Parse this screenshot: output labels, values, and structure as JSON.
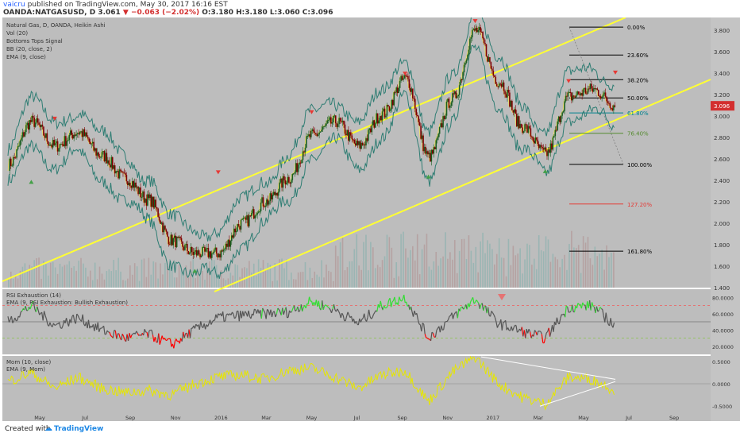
{
  "header": {
    "author": "vaicru",
    "published": "published on TradingView.com, May 30, 2017 16:16 EST",
    "symbol": "OANDA:NATGASUSD, D",
    "last": "3.061",
    "change": "−0.063 (−2.02%)",
    "ohlc": "O:3.180 H:3.180 L:3.060 C:3.096"
  },
  "footer": {
    "created_with": "Created with",
    "brand": "TradingView"
  },
  "colors": {
    "background": "#bdbdbd",
    "channel": "#ffff33",
    "bull_candle": "#1b5e20",
    "bear_candle": "#7f0000",
    "bollinger": "#2e7d73",
    "ema": "#ffeb3b",
    "fib_line": "#000000",
    "rsi_line": "#555555",
    "rsi_up": "#33dd33",
    "rsi_down": "#ff0000",
    "mom": "#e6e600"
  },
  "chart_data": [
    {
      "type": "line",
      "panel": "price",
      "studies": [
        "Natural Gas, D, OANDA, Heikin Ashi",
        "Vol (20)",
        "Bottoms Tops Signal",
        "BB (20, close, 2)",
        "EMA (9, close)"
      ],
      "x_ticks": [
        "May",
        "Jul",
        "Sep",
        "Nov",
        "2016",
        "Mar",
        "May",
        "Jul",
        "Sep",
        "Nov",
        "2017",
        "Mar",
        "May",
        "Jul",
        "Sep"
      ],
      "y_ticks": [
        "3.800",
        "3.600",
        "3.400",
        "3.200",
        "3.000",
        "2.800",
        "2.600",
        "2.400",
        "2.200",
        "2.000",
        "1.800",
        "1.600",
        "1.400"
      ],
      "ylim": [
        1.4,
        3.92
      ],
      "last_price_label": "3.096",
      "price_series_monthly": [
        2.55,
        2.95,
        2.72,
        2.85,
        2.63,
        2.42,
        2.22,
        1.84,
        1.72,
        1.72,
        2.0,
        2.2,
        2.42,
        2.82,
        2.95,
        2.72,
        3.02,
        3.35,
        2.62,
        3.16,
        3.8,
        3.32,
        2.9,
        2.65,
        3.18,
        3.25,
        3.1
      ],
      "fib_levels": [
        {
          "label": "0.00%",
          "price": 3.83
        },
        {
          "label": "23.60%",
          "price": 3.57
        },
        {
          "label": "38.20%",
          "price": 3.34
        },
        {
          "label": "50.00%",
          "price": 3.17
        },
        {
          "label": "61.80%",
          "price": 3.03
        },
        {
          "label": "76.40%",
          "price": 2.84
        },
        {
          "label": "100.00%",
          "price": 2.55
        },
        {
          "label": "127.20%",
          "price": 2.18
        },
        {
          "label": "161.80%",
          "price": 1.74
        }
      ]
    },
    {
      "type": "line",
      "panel": "rsi",
      "studies": [
        "RSI Exhaustion (14)",
        "EMA (9, RSI Exhaustion: Bullish Exhaustion)"
      ],
      "y_ticks": [
        "80.0000",
        "60.0000",
        "40.0000",
        "20.0000"
      ],
      "ylim": [
        10,
        90
      ],
      "overbought": 70,
      "oversold": 30,
      "rsi_series_monthly": [
        50,
        70,
        45,
        55,
        40,
        30,
        35,
        22,
        40,
        55,
        58,
        60,
        62,
        75,
        65,
        48,
        70,
        80,
        30,
        55,
        78,
        48,
        38,
        30,
        68,
        70,
        45
      ]
    },
    {
      "type": "line",
      "panel": "momentum",
      "studies": [
        "Mom (10, close)",
        "EMA (9, Mom)"
      ],
      "y_ticks": [
        "0.5000",
        "0.0000",
        "-0.5000"
      ],
      "ylim": [
        -0.62,
        0.62
      ],
      "mom_series_monthly": [
        0.05,
        0.25,
        -0.1,
        0.15,
        -0.1,
        -0.2,
        -0.15,
        -0.25,
        0.0,
        0.15,
        0.2,
        0.1,
        0.3,
        0.35,
        0.15,
        -0.1,
        0.2,
        0.3,
        -0.4,
        0.25,
        0.6,
        0.0,
        -0.3,
        -0.45,
        0.15,
        0.1,
        -0.15
      ]
    }
  ]
}
